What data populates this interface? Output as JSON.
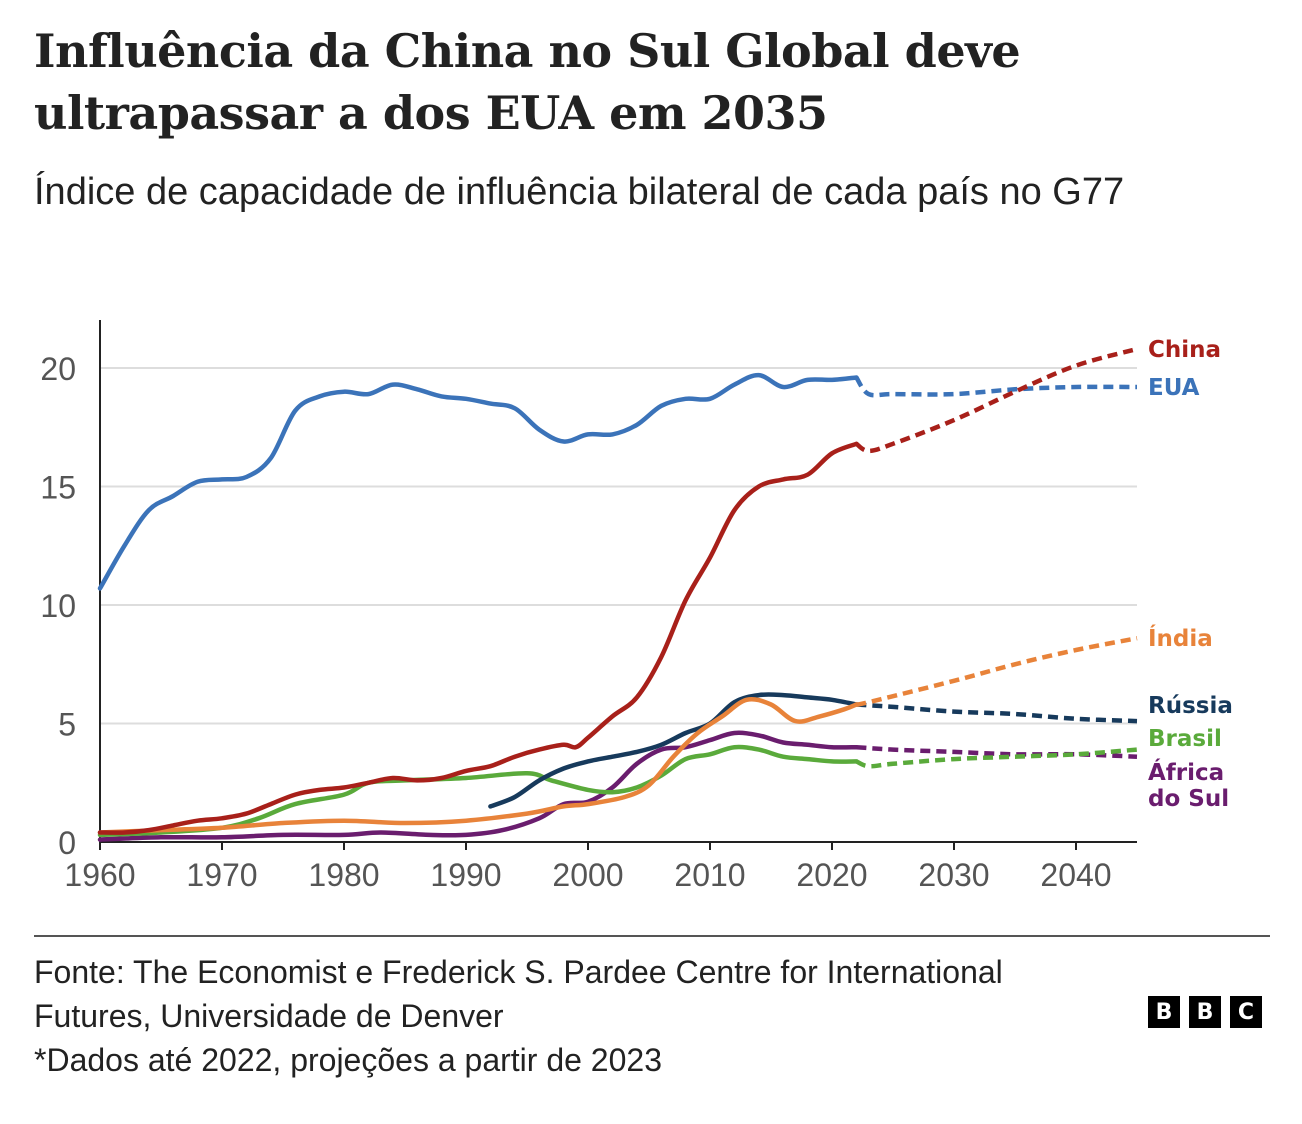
{
  "title": "Influência da China no Sul Global deve ultrapassar a dos EUA em 2035",
  "subtitle": "Índice de capacidade de influência bilateral de cada país no G77",
  "source": "Fonte: The Economist e Frederick S. Pardee Centre for International Futures, Universidade de Denver",
  "note": "*Dados até 2022, projeções a partir de 2023",
  "logo": {
    "letters": [
      "B",
      "B",
      "C"
    ]
  },
  "chart_data": {
    "type": "line",
    "title": "",
    "xlabel": "",
    "ylabel": "",
    "xlim": [
      1960,
      2045
    ],
    "ylim": [
      0,
      22
    ],
    "x_ticks": [
      1960,
      1970,
      1980,
      1990,
      2000,
      2010,
      2020,
      2030,
      2040
    ],
    "y_ticks": [
      0,
      5,
      10,
      15,
      20
    ],
    "grid": "horizontal",
    "legend": "direct labels at right end of lines",
    "projection_start": 2023,
    "series": [
      {
        "name": "China",
        "color": "#a8201a",
        "points": [
          [
            1960,
            0.4
          ],
          [
            1962,
            0.4
          ],
          [
            1964,
            0.5
          ],
          [
            1966,
            0.7
          ],
          [
            1968,
            0.9
          ],
          [
            1970,
            1.0
          ],
          [
            1972,
            1.2
          ],
          [
            1974,
            1.6
          ],
          [
            1976,
            2.0
          ],
          [
            1978,
            2.2
          ],
          [
            1980,
            2.3
          ],
          [
            1982,
            2.5
          ],
          [
            1984,
            2.7
          ],
          [
            1986,
            2.6
          ],
          [
            1988,
            2.7
          ],
          [
            1990,
            3.0
          ],
          [
            1992,
            3.2
          ],
          [
            1994,
            3.6
          ],
          [
            1996,
            3.9
          ],
          [
            1998,
            4.1
          ],
          [
            1999,
            4.0
          ],
          [
            2000,
            4.4
          ],
          [
            2002,
            5.3
          ],
          [
            2004,
            6.1
          ],
          [
            2006,
            7.8
          ],
          [
            2008,
            10.2
          ],
          [
            2010,
            12.0
          ],
          [
            2012,
            14.0
          ],
          [
            2014,
            15.0
          ],
          [
            2016,
            15.3
          ],
          [
            2018,
            15.5
          ],
          [
            2020,
            16.4
          ],
          [
            2022,
            16.8
          ],
          [
            2023,
            16.5
          ],
          [
            2025,
            16.8
          ],
          [
            2030,
            17.8
          ],
          [
            2035,
            19.0
          ],
          [
            2040,
            20.1
          ],
          [
            2045,
            20.8
          ]
        ]
      },
      {
        "name": "EUA",
        "color": "#3b73b9",
        "points": [
          [
            1960,
            10.7
          ],
          [
            1962,
            12.5
          ],
          [
            1964,
            14.0
          ],
          [
            1966,
            14.6
          ],
          [
            1968,
            15.2
          ],
          [
            1970,
            15.3
          ],
          [
            1972,
            15.4
          ],
          [
            1974,
            16.2
          ],
          [
            1976,
            18.2
          ],
          [
            1978,
            18.8
          ],
          [
            1980,
            19.0
          ],
          [
            1982,
            18.9
          ],
          [
            1984,
            19.3
          ],
          [
            1986,
            19.1
          ],
          [
            1988,
            18.8
          ],
          [
            1990,
            18.7
          ],
          [
            1992,
            18.5
          ],
          [
            1994,
            18.3
          ],
          [
            1996,
            17.4
          ],
          [
            1998,
            16.9
          ],
          [
            2000,
            17.2
          ],
          [
            2002,
            17.2
          ],
          [
            2004,
            17.6
          ],
          [
            2006,
            18.4
          ],
          [
            2008,
            18.7
          ],
          [
            2010,
            18.7
          ],
          [
            2012,
            19.3
          ],
          [
            2014,
            19.7
          ],
          [
            2016,
            19.2
          ],
          [
            2018,
            19.5
          ],
          [
            2020,
            19.5
          ],
          [
            2022,
            19.6
          ],
          [
            2023,
            18.9
          ],
          [
            2025,
            18.9
          ],
          [
            2030,
            18.9
          ],
          [
            2035,
            19.1
          ],
          [
            2040,
            19.2
          ],
          [
            2045,
            19.2
          ]
        ]
      },
      {
        "name": "Índia",
        "color": "#e8833a",
        "points": [
          [
            1960,
            0.4
          ],
          [
            1965,
            0.5
          ],
          [
            1970,
            0.6
          ],
          [
            1975,
            0.8
          ],
          [
            1980,
            0.9
          ],
          [
            1985,
            0.8
          ],
          [
            1990,
            0.9
          ],
          [
            1995,
            1.2
          ],
          [
            1998,
            1.5
          ],
          [
            2000,
            1.6
          ],
          [
            2003,
            1.9
          ],
          [
            2005,
            2.4
          ],
          [
            2007,
            3.6
          ],
          [
            2009,
            4.6
          ],
          [
            2011,
            5.3
          ],
          [
            2013,
            6.0
          ],
          [
            2015,
            5.8
          ],
          [
            2017,
            5.1
          ],
          [
            2019,
            5.3
          ],
          [
            2021,
            5.6
          ],
          [
            2022,
            5.8
          ],
          [
            2023,
            5.9
          ],
          [
            2030,
            6.8
          ],
          [
            2035,
            7.5
          ],
          [
            2040,
            8.1
          ],
          [
            2045,
            8.6
          ]
        ]
      },
      {
        "name": "Rússia",
        "color": "#173a5c",
        "points": [
          [
            1992,
            1.5
          ],
          [
            1994,
            1.9
          ],
          [
            1996,
            2.6
          ],
          [
            1998,
            3.1
          ],
          [
            2000,
            3.4
          ],
          [
            2002,
            3.6
          ],
          [
            2004,
            3.8
          ],
          [
            2006,
            4.1
          ],
          [
            2008,
            4.6
          ],
          [
            2010,
            5.0
          ],
          [
            2012,
            5.9
          ],
          [
            2014,
            6.2
          ],
          [
            2016,
            6.2
          ],
          [
            2018,
            6.1
          ],
          [
            2020,
            6.0
          ],
          [
            2022,
            5.8
          ],
          [
            2025,
            5.7
          ],
          [
            2030,
            5.5
          ],
          [
            2035,
            5.4
          ],
          [
            2040,
            5.2
          ],
          [
            2045,
            5.1
          ]
        ]
      },
      {
        "name": "Brasil",
        "color": "#5aaa3b",
        "points": [
          [
            1960,
            0.3
          ],
          [
            1965,
            0.4
          ],
          [
            1970,
            0.6
          ],
          [
            1973,
            1.0
          ],
          [
            1976,
            1.6
          ],
          [
            1980,
            2.0
          ],
          [
            1982,
            2.5
          ],
          [
            1985,
            2.6
          ],
          [
            1990,
            2.7
          ],
          [
            1995,
            2.9
          ],
          [
            1997,
            2.6
          ],
          [
            2000,
            2.2
          ],
          [
            2002,
            2.1
          ],
          [
            2004,
            2.3
          ],
          [
            2006,
            2.8
          ],
          [
            2008,
            3.5
          ],
          [
            2010,
            3.7
          ],
          [
            2012,
            4.0
          ],
          [
            2014,
            3.9
          ],
          [
            2016,
            3.6
          ],
          [
            2018,
            3.5
          ],
          [
            2020,
            3.4
          ],
          [
            2022,
            3.4
          ],
          [
            2023,
            3.2
          ],
          [
            2025,
            3.3
          ],
          [
            2030,
            3.5
          ],
          [
            2035,
            3.6
          ],
          [
            2040,
            3.7
          ],
          [
            2045,
            3.9
          ]
        ]
      },
      {
        "name": "África do Sul",
        "color": "#6a1d6e",
        "points": [
          [
            1960,
            0.1
          ],
          [
            1965,
            0.2
          ],
          [
            1970,
            0.2
          ],
          [
            1975,
            0.3
          ],
          [
            1980,
            0.3
          ],
          [
            1983,
            0.4
          ],
          [
            1987,
            0.3
          ],
          [
            1990,
            0.3
          ],
          [
            1993,
            0.5
          ],
          [
            1996,
            1.0
          ],
          [
            1998,
            1.6
          ],
          [
            2000,
            1.7
          ],
          [
            2002,
            2.3
          ],
          [
            2004,
            3.3
          ],
          [
            2006,
            3.9
          ],
          [
            2008,
            4.0
          ],
          [
            2010,
            4.3
          ],
          [
            2012,
            4.6
          ],
          [
            2014,
            4.5
          ],
          [
            2016,
            4.2
          ],
          [
            2018,
            4.1
          ],
          [
            2020,
            4.0
          ],
          [
            2022,
            4.0
          ],
          [
            2025,
            3.9
          ],
          [
            2030,
            3.8
          ],
          [
            2035,
            3.7
          ],
          [
            2040,
            3.7
          ],
          [
            2045,
            3.6
          ]
        ]
      }
    ],
    "labels": [
      {
        "text": "China",
        "series": "China"
      },
      {
        "text": "EUA",
        "series": "EUA"
      },
      {
        "text": "Índia",
        "series": "Índia"
      },
      {
        "text": "Rússia",
        "series": "Rússia"
      },
      {
        "text": "Brasil",
        "series": "Brasil"
      },
      {
        "text": "África",
        "series": "África do Sul"
      },
      {
        "text": "do Sul",
        "series": "África do Sul"
      }
    ]
  }
}
